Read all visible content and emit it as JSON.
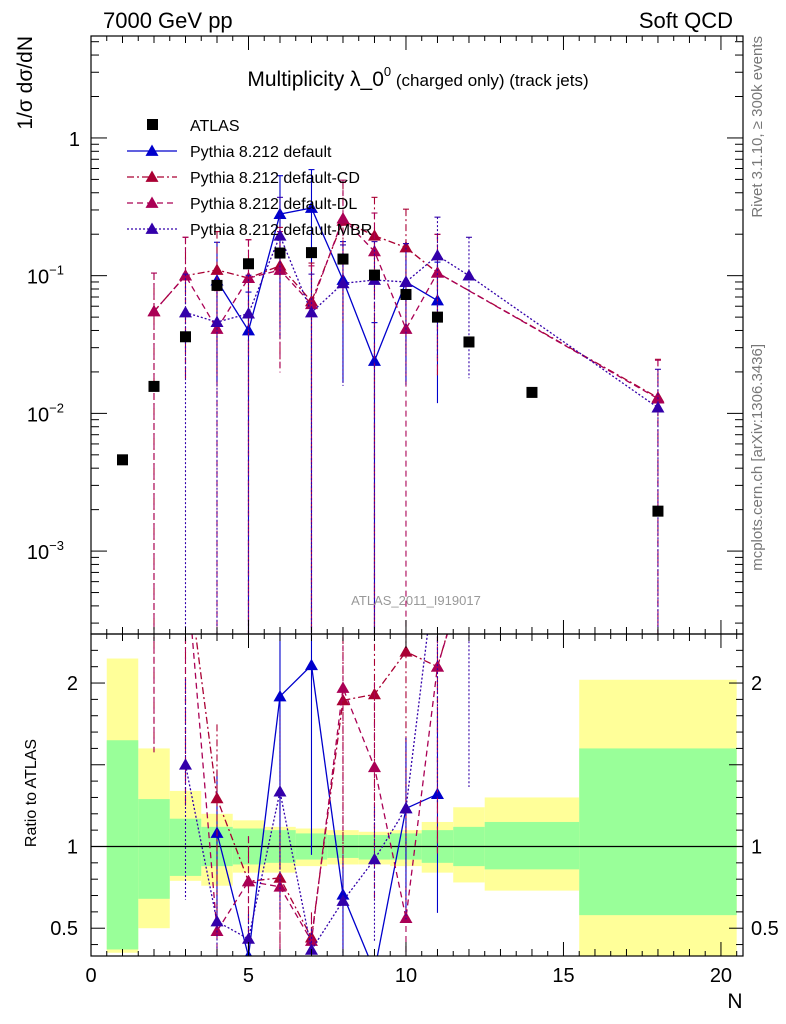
{
  "header": {
    "left": "7000 GeV pp",
    "right": "Soft QCD"
  },
  "side_labels": {
    "rivet": "Rivet 3.1.10, ≥ 300k events",
    "mcplots": "mcplots.cern.ch [arXiv:1306.3436]"
  },
  "chart_data": {
    "type": "scatter",
    "title_main": "Multiplicity λ_0",
    "title_sup": "0",
    "title_sub": " (charged only) (track jets)",
    "ylabel": "1/σ dσ/dN",
    "xlabel": "N",
    "ratio_ylabel": "Ratio to ATLAS",
    "analysis_tag": "ATLAS_2011_I919017",
    "xlim": [
      0,
      20.7
    ],
    "ylim": [
      0.00025,
      5.5
    ],
    "yscale": "log",
    "ratio_ylim": [
      0.33,
      2.3
    ],
    "x_ticks": [
      "0",
      "5",
      "10",
      "15",
      "20"
    ],
    "y_ticks_main": [
      "10",
      "10",
      "10",
      "1"
    ],
    "y_ticks_main_exp": [
      "−3",
      "−2",
      "−1",
      ""
    ],
    "y_ticks_ratio": [
      "0.5",
      "1",
      "2"
    ],
    "legend": [
      "ATLAS",
      "Pythia 8.212 default",
      "Pythia 8.212 default-CD",
      "Pythia 8.212 default-DL",
      "Pythia 8.212 default-MBR"
    ],
    "data": {
      "name": "ATLAS",
      "x": [
        1,
        2,
        3,
        4,
        5,
        6,
        7,
        8,
        9,
        10,
        11,
        12,
        14,
        18
      ],
      "y": [
        0.0046,
        0.0157,
        0.036,
        0.085,
        0.122,
        0.146,
        0.147,
        0.132,
        0.101,
        0.073,
        0.05,
        0.033,
        0.0142,
        0.00195
      ]
    },
    "series": [
      {
        "name": "Pythia 8.212 default",
        "color": "#0000cc",
        "dash": "",
        "x": [
          4,
          5,
          6,
          7,
          8,
          9,
          10,
          11
        ],
        "y": [
          0.092,
          0.04,
          0.28,
          0.31,
          0.093,
          0.024,
          0.09,
          0.066
        ]
      },
      {
        "name": "Pythia 8.212 default-CD",
        "color": "#aa0033",
        "dash": "7,3,2,3",
        "x": [
          2,
          3,
          4,
          5,
          6,
          7,
          8,
          9,
          10,
          11,
          18
        ],
        "y": [
          0.055,
          0.1,
          0.11,
          0.096,
          0.118,
          0.065,
          0.25,
          0.195,
          0.16,
          0.105,
          0.013
        ]
      },
      {
        "name": "Pythia 8.212 default-DL",
        "color": "#aa0055",
        "dash": "6,4",
        "x": [
          2,
          3,
          4,
          5,
          6,
          7,
          8,
          9,
          10,
          11,
          18
        ],
        "y": [
          0.055,
          0.1,
          0.041,
          0.096,
          0.11,
          0.062,
          0.26,
          0.15,
          0.041,
          0.105,
          0.0128
        ]
      },
      {
        "name": "Pythia 8.212 default-MBR",
        "color": "#3300aa",
        "dash": "2,2",
        "x": [
          3,
          4,
          5,
          6,
          7,
          8,
          9,
          10,
          11,
          12,
          18
        ],
        "y": [
          0.054,
          0.046,
          0.053,
          0.195,
          0.054,
          0.088,
          0.093,
          0.09,
          0.14,
          0.1,
          0.011
        ]
      }
    ],
    "ratio_bands": {
      "x_edges": [
        0.5,
        1.5,
        2.5,
        3.5,
        4.5,
        5.5,
        6.5,
        7.5,
        8.5,
        9.5,
        10.5,
        11.5,
        12.5,
        15.5,
        20.5
      ],
      "inner_lo": [
        0.37,
        0.68,
        0.82,
        0.88,
        0.89,
        0.9,
        0.92,
        0.93,
        0.92,
        0.92,
        0.9,
        0.88,
        0.86,
        0.58
      ],
      "inner_hi": [
        1.65,
        1.29,
        1.17,
        1.12,
        1.11,
        1.1,
        1.08,
        1.07,
        1.07,
        1.08,
        1.1,
        1.12,
        1.15,
        1.6
      ],
      "outer_lo": [
        0.35,
        0.5,
        0.79,
        0.76,
        0.84,
        0.84,
        0.88,
        0.89,
        0.89,
        0.88,
        0.84,
        0.78,
        0.73,
        0.33
      ],
      "outer_hi": [
        2.15,
        1.6,
        1.34,
        1.2,
        1.16,
        1.12,
        1.11,
        1.1,
        1.09,
        1.1,
        1.15,
        1.24,
        1.3,
        2.02
      ]
    },
    "colors": {
      "inner_band": "#99ff99",
      "outer_band": "#ffff99"
    }
  }
}
